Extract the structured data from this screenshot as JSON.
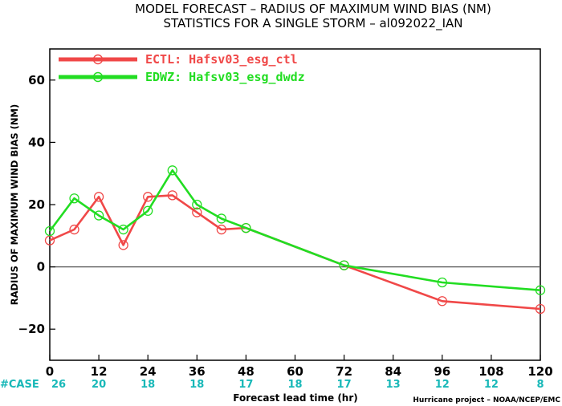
{
  "chart_data": {
    "type": "line",
    "title": "MODEL FORECAST – RADIUS OF MAXIMUM WIND BIAS (NM)",
    "subtitle": "STATISTICS FOR A SINGLE STORM – al092022_IAN",
    "xlabel": "Forecast lead time (hr)",
    "ylabel": "RADIUS OF MAXIMUM WIND BIAS (NM)",
    "xlim": [
      0,
      120
    ],
    "ylim": [
      -30,
      70
    ],
    "xticks": [
      0,
      12,
      24,
      36,
      48,
      60,
      72,
      84,
      96,
      108,
      120
    ],
    "yticks": [
      -20,
      0,
      20,
      40,
      60
    ],
    "zero_line": true,
    "legend_position": "top-left",
    "series": [
      {
        "name": "ECTL: Hafsv03_esg_ctl",
        "color": "#f04848",
        "x": [
          0,
          6,
          12,
          18,
          24,
          30,
          36,
          42,
          48,
          72,
          96,
          120
        ],
        "y": [
          8.5,
          12,
          22.5,
          7,
          22.5,
          23,
          17.5,
          12,
          12.5,
          0.5,
          -11,
          -13.5
        ]
      },
      {
        "name": "EDWZ: Hafsv03_esg_dwdz",
        "color": "#22dd22",
        "x": [
          0,
          6,
          12,
          18,
          24,
          30,
          36,
          42,
          48,
          72,
          96,
          120
        ],
        "y": [
          11.5,
          22,
          16.5,
          12,
          18,
          31,
          20,
          15.5,
          12.5,
          0.5,
          -5,
          -7.5
        ]
      }
    ],
    "cases": {
      "label": "#CASE",
      "x": [
        0,
        12,
        24,
        36,
        48,
        60,
        72,
        84,
        96,
        108,
        120
      ],
      "values": [
        "26",
        "20",
        "18",
        "18",
        "17",
        "18",
        "17",
        "13",
        "12",
        "12",
        "8"
      ]
    },
    "credit": "Hurricane project – NOAA/NCEP/EMC"
  },
  "colors": {
    "cases": "#18b8b8",
    "axis": "#000000",
    "zero_line": "#555555"
  }
}
